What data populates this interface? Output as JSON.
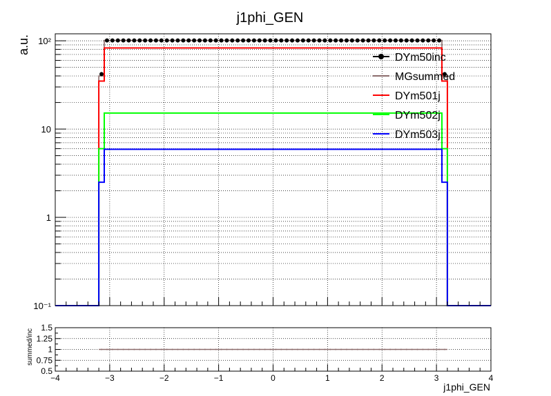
{
  "chart_data": [
    {
      "type": "line",
      "title": "j1phi_GEN",
      "ylabel": "a.u.",
      "xlabel": "",
      "xlim": [
        -4,
        4
      ],
      "ylim": [
        0.1,
        120
      ],
      "yscale": "log",
      "grid": true,
      "legend_position": "top-right",
      "x_ticks": [
        "−4",
        "−3",
        "−2",
        "−1",
        "0",
        "1",
        "2",
        "3",
        "4"
      ],
      "y_ticks": [
        {
          "value": 0.1,
          "label": "10⁻¹"
        },
        {
          "value": 1,
          "label": "1"
        },
        {
          "value": 10,
          "label": "10"
        },
        {
          "value": 100,
          "label": "10²"
        }
      ],
      "x_range_filled": [
        -3.2,
        3.2
      ],
      "edge_bins": {
        "left": [
          -3.2,
          -3.1
        ],
        "right": [
          3.1,
          3.2
        ]
      },
      "series": [
        {
          "name": "DYm50inc",
          "style": "markers",
          "color": "#000000",
          "plateau": 101,
          "edge": 42
        },
        {
          "name": "MGsummed",
          "style": "line",
          "color": "#8b6b6b",
          "plateau": 101,
          "edge": 40
        },
        {
          "name": "DYm501j",
          "style": "line",
          "color": "#ff0000",
          "plateau": 83,
          "edge": 35
        },
        {
          "name": "DYm502j",
          "style": "line",
          "color": "#00ff00",
          "plateau": 15.2,
          "edge": 6
        },
        {
          "name": "DYm503j",
          "style": "line",
          "color": "#0000ff",
          "plateau": 5.9,
          "edge": 2.5
        }
      ]
    },
    {
      "type": "line",
      "title": "",
      "ylabel": "summed/inc",
      "xlabel": "j1phi_GEN",
      "xlim": [
        -4,
        4
      ],
      "ylim": [
        0.5,
        1.5
      ],
      "grid": true,
      "x_ticks": [
        "−4",
        "−3",
        "−2",
        "−1",
        "0",
        "1",
        "2",
        "3",
        "4"
      ],
      "y_ticks": [
        "0.5",
        "0.75",
        "1",
        "1.25",
        "1.5"
      ],
      "x_range_filled": [
        -3.2,
        3.2
      ],
      "series": [
        {
          "name": "",
          "color": "#8b6b6b",
          "value": 1.0
        }
      ]
    }
  ]
}
